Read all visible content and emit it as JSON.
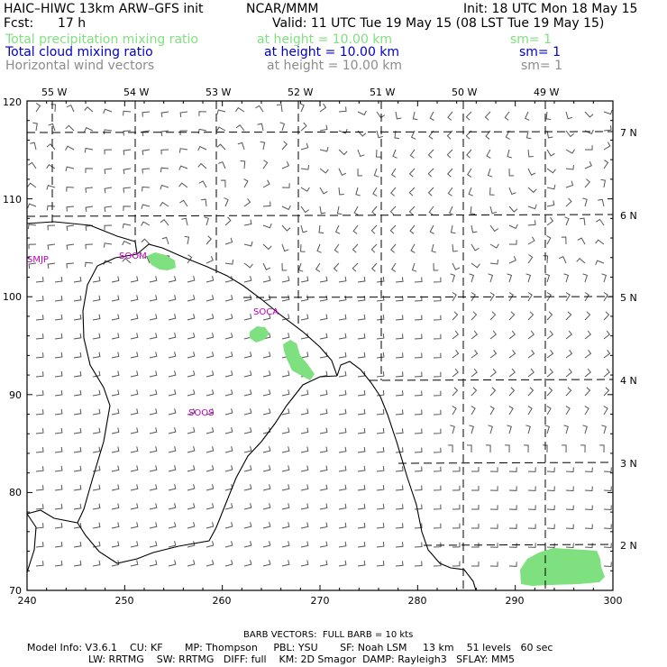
{
  "header": {
    "model": "HAIC–HIWC 13km ARW–GFS init",
    "org": "NCAR/MMM",
    "init": "Init: 18 UTC Mon 18 May 15",
    "fcst_label": "Fcst:",
    "fcst_value": "17 h",
    "valid": "Valid: 11 UTC Tue 19 May 15 (08 LST Tue 19 May 15)"
  },
  "fields": [
    {
      "name": "Total precipitation mixing ratio",
      "height": "at height = 10.00 km",
      "sm": "sm= 1",
      "color": "#7fe07f"
    },
    {
      "name": "Total cloud mixing ratio",
      "height": "at height = 10.00 km",
      "sm": "sm= 1",
      "color": "#0000c8"
    },
    {
      "name": "Horizontal wind vectors",
      "height": "at height = 10.00 km",
      "sm": "sm= 1",
      "color": "#8c8c8c"
    }
  ],
  "map": {
    "x_ticks": [
      "240",
      "250",
      "260",
      "270",
      "280",
      "290",
      "300"
    ],
    "y_ticks": [
      "70",
      "80",
      "90",
      "100",
      "110",
      "120"
    ],
    "lon_labels": [
      "55 W",
      "54 W",
      "53 W",
      "52 W",
      "51 W",
      "50 W",
      "49 W"
    ],
    "lat_labels": [
      "7 N",
      "6 N",
      "5 N",
      "4 N",
      "3 N",
      "2 N"
    ],
    "stations": [
      "SMJP",
      "SOCA",
      "SOOS",
      "SOOM"
    ],
    "precip_color": "#7fe07f",
    "coast_color": "#000000",
    "grid_style": "dashed",
    "barb_color": "#555555"
  },
  "footer": {
    "barb_note": "BARB VECTORS:  FULL BARB = 10 kts",
    "line1": "Model Info: V3.6.1    CU: KF       MP: Thompson     PBL: YSU       SF: Noah LSM     13 km    51 levels   60 sec",
    "line2": "LW: RRTMG    SW: RRTMG   DIFF: full    KM: 2D Smagor  DAMP: Rayleigh3   SFLAY: MM5"
  }
}
